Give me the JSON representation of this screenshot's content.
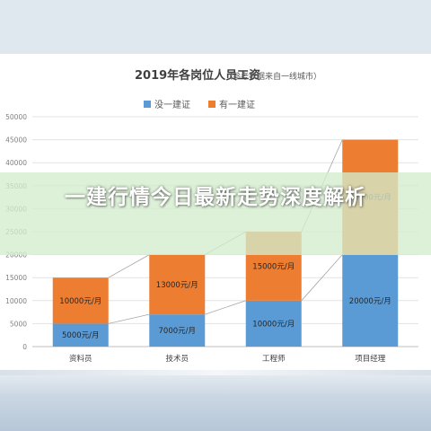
{
  "overlay": {
    "headline": "一建行情今日最新走势深度解析"
  },
  "chart_data": {
    "type": "bar",
    "stacked": true,
    "title": "2019年各岗位人员工资",
    "subtitle": "（参考数据来自一线城市）",
    "categories": [
      "资料员",
      "技术员",
      "工程师",
      "项目经理"
    ],
    "ylim": [
      0,
      50000
    ],
    "yticks": [
      "0",
      "5000",
      "10000",
      "15000",
      "20000",
      "25000",
      "30000",
      "35000",
      "40000",
      "45000",
      "50000"
    ],
    "grid": true,
    "legend_position": "top-center",
    "connector_lines": true,
    "series": [
      {
        "name": "没一建证",
        "color": "#5b9bd5",
        "values": [
          5000,
          7000,
          10000,
          20000
        ],
        "labels": [
          "5000元/月",
          "7000元/月",
          "10000元/月",
          "20000元/月"
        ]
      },
      {
        "name": "有一建证",
        "color": "#ed7d31",
        "values": [
          10000,
          13000,
          15000,
          25000
        ],
        "labels": [
          "10000元/月",
          "13000元/月",
          "15000元/月",
          "25000元/月"
        ]
      }
    ]
  }
}
